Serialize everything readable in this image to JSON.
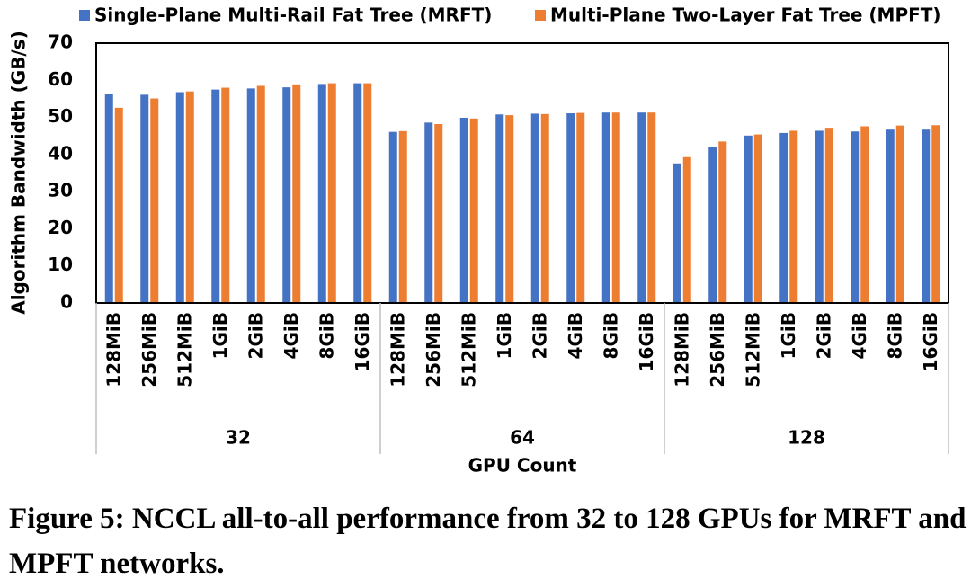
{
  "chart_data": {
    "type": "bar",
    "categories": [
      "128MiB",
      "256MiB",
      "512MiB",
      "1GiB",
      "2GiB",
      "4GiB",
      "8GiB",
      "16GiB",
      "128MiB",
      "256MiB",
      "512MiB",
      "1GiB",
      "2GiB",
      "4GiB",
      "8GiB",
      "16GiB",
      "128MiB",
      "256MiB",
      "512MiB",
      "1GiB",
      "2GiB",
      "4GiB",
      "8GiB",
      "16GiB"
    ],
    "groups": [
      "32",
      "64",
      "128"
    ],
    "series": [
      {
        "name": "Single-Plane Multi-Rail Fat Tree (MRFT)",
        "color": "#4472c4",
        "values": [
          56.2,
          56.1,
          56.8,
          57.5,
          57.8,
          58.1,
          59.0,
          59.2,
          46.1,
          48.6,
          49.9,
          50.8,
          51.0,
          51.1,
          51.3,
          51.3,
          37.6,
          42.1,
          45.1,
          45.8,
          46.4,
          46.2,
          46.7,
          46.7
        ]
      },
      {
        "name": "Multi-Plane Two-Layer Fat Tree (MPFT)",
        "color": "#ed7d31",
        "values": [
          52.6,
          55.1,
          57.0,
          58.0,
          58.5,
          58.9,
          59.2,
          59.2,
          46.3,
          48.2,
          49.7,
          50.6,
          50.9,
          51.2,
          51.3,
          51.3,
          39.3,
          43.5,
          45.4,
          46.4,
          47.2,
          47.6,
          47.8,
          47.9
        ]
      }
    ],
    "ylabel": "Algorithm Bandwidth (GB/s)",
    "xlabel": "GPU Count",
    "ylim": [
      0,
      70
    ],
    "yticks": [
      0,
      10,
      20,
      30,
      40,
      50,
      60,
      70
    ],
    "grid": false
  },
  "caption": "Figure 5: NCCL all-to-all performance from 32 to 128 GPUs for MRFT and MPFT networks."
}
